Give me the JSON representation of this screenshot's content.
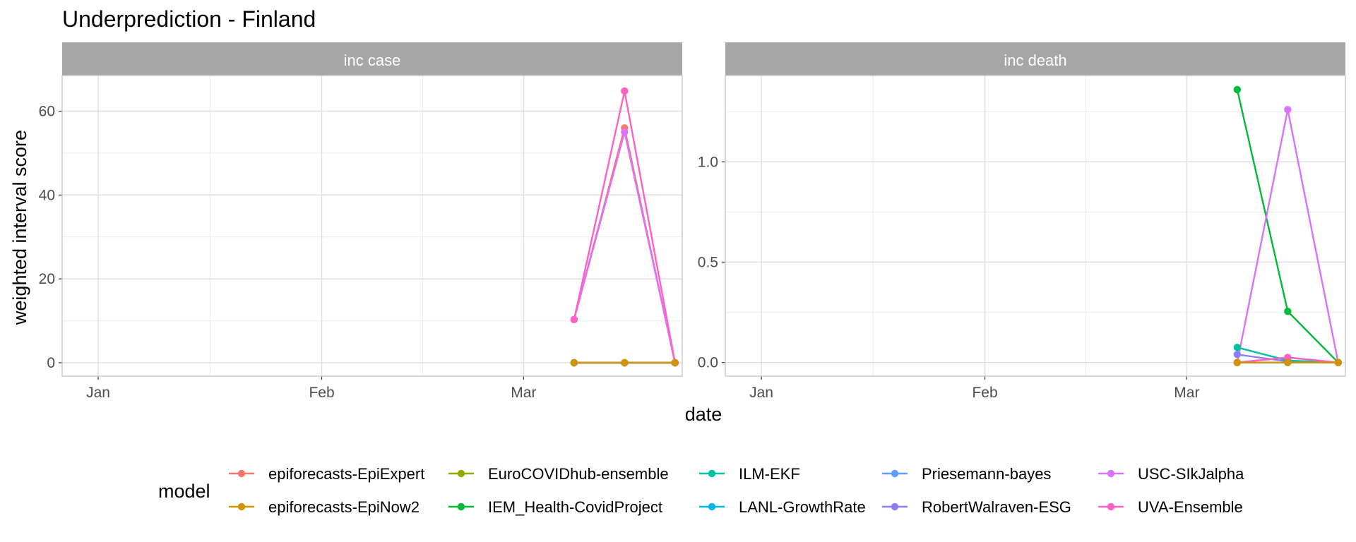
{
  "chart_data": {
    "type": "line",
    "title": "Underprediction - Finland",
    "xlabel": "date",
    "ylabel": "weighted interval score",
    "legend_title": "model",
    "legend_position": "bottom",
    "grid": true,
    "x_ticks": [
      "Jan",
      "Feb",
      "Mar"
    ],
    "x_tick_dates": [
      "2021-01-01",
      "2021-02-01",
      "2021-03-01"
    ],
    "xlim": [
      "2020-12-27",
      "2021-03-23"
    ],
    "models": [
      {
        "name": "epiforecasts-EpiExpert",
        "color": "#F8766D"
      },
      {
        "name": "epiforecasts-EpiNow2",
        "color": "#D39200"
      },
      {
        "name": "EuroCOVIDhub-ensemble",
        "color": "#93AA00"
      },
      {
        "name": "IEM_Health-CovidProject",
        "color": "#00BA38"
      },
      {
        "name": "ILM-EKF",
        "color": "#00C19F"
      },
      {
        "name": "LANL-GrowthRate",
        "color": "#00B9E3"
      },
      {
        "name": "Priesemann-bayes",
        "color": "#619CFF"
      },
      {
        "name": "RobertWalraven-ESG",
        "color": "#8B7FFF"
      },
      {
        "name": "USC-SIkJalpha",
        "color": "#DB72FB"
      },
      {
        "name": "UVA-Ensemble",
        "color": "#FF61C3"
      }
    ],
    "facets": [
      {
        "label": "inc case",
        "ylim": [
          -3.2,
          68.5
        ],
        "y_ticks": [
          0,
          20,
          40,
          60
        ],
        "y_tick_labels": [
          "0",
          "20",
          "40",
          "60"
        ],
        "minor_y_ticks": [
          10,
          30,
          50
        ],
        "series": [
          {
            "name": "epiforecasts-EpiExpert",
            "x": [
              "2021-03-08",
              "2021-03-15",
              "2021-03-22"
            ],
            "y": [
              10.3,
              56,
              0
            ]
          },
          {
            "name": "epiforecasts-EpiNow2",
            "x": [
              "2021-03-08",
              "2021-03-15",
              "2021-03-22"
            ],
            "y": [
              0,
              0,
              0
            ]
          },
          {
            "name": "EuroCOVIDhub-ensemble",
            "x": [
              "2021-03-08",
              "2021-03-15",
              "2021-03-22"
            ],
            "y": [
              0,
              0,
              0
            ]
          },
          {
            "name": "IEM_Health-CovidProject",
            "x": [
              "2021-03-08",
              "2021-03-15",
              "2021-03-22"
            ],
            "y": [
              0,
              0,
              0
            ]
          },
          {
            "name": "ILM-EKF",
            "x": [
              "2021-03-08",
              "2021-03-15",
              "2021-03-22"
            ],
            "y": [
              0,
              0,
              0
            ]
          },
          {
            "name": "LANL-GrowthRate",
            "x": [
              "2021-03-08",
              "2021-03-15",
              "2021-03-22"
            ],
            "y": [
              0,
              0,
              0
            ]
          },
          {
            "name": "Priesemann-bayes",
            "x": [
              "2021-03-08",
              "2021-03-15",
              "2021-03-22"
            ],
            "y": [
              0,
              0,
              0
            ]
          },
          {
            "name": "RobertWalraven-ESG",
            "x": [
              "2021-03-08",
              "2021-03-15",
              "2021-03-22"
            ],
            "y": [
              0,
              0,
              0
            ]
          },
          {
            "name": "USC-SIkJalpha",
            "x": [
              "2021-03-08",
              "2021-03-15",
              "2021-03-22"
            ],
            "y": [
              10.3,
              55,
              0
            ]
          },
          {
            "name": "UVA-Ensemble",
            "x": [
              "2021-03-08",
              "2021-03-15",
              "2021-03-22"
            ],
            "y": [
              10.3,
              64.8,
              0
            ]
          },
          {
            "name": "epiforecasts-EpiNow2",
            "x": [
              "2021-03-08",
              "2021-03-15",
              "2021-03-22"
            ],
            "y": [
              0,
              0,
              0
            ]
          }
        ]
      },
      {
        "label": "inc death",
        "ylim": [
          -0.068,
          1.43
        ],
        "y_ticks": [
          0,
          0.5,
          1.0
        ],
        "y_tick_labels": [
          "0.0",
          "0.5",
          "1.0"
        ],
        "minor_y_ticks": [
          0.25,
          0.75,
          1.25
        ],
        "series": [
          {
            "name": "epiforecasts-EpiExpert",
            "x": [
              "2021-03-08",
              "2021-03-15",
              "2021-03-22"
            ],
            "y": [
              0,
              0.025,
              0
            ]
          },
          {
            "name": "EuroCOVIDhub-ensemble",
            "x": [
              "2021-03-08",
              "2021-03-15",
              "2021-03-22"
            ],
            "y": [
              0,
              0,
              0
            ]
          },
          {
            "name": "LANL-GrowthRate",
            "x": [
              "2021-03-08",
              "2021-03-15",
              "2021-03-22"
            ],
            "y": [
              0,
              0,
              0
            ]
          },
          {
            "name": "Priesemann-bayes",
            "x": [
              "2021-03-08",
              "2021-03-15",
              "2021-03-22"
            ],
            "y": [
              0,
              0,
              0
            ]
          },
          {
            "name": "RobertWalraven-ESG",
            "x": [
              "2021-03-08",
              "2021-03-15",
              "2021-03-22"
            ],
            "y": [
              0.04,
              0.005,
              0
            ]
          },
          {
            "name": "ILM-EKF",
            "x": [
              "2021-03-08",
              "2021-03-15",
              "2021-03-22"
            ],
            "y": [
              0.075,
              0.01,
              0
            ]
          },
          {
            "name": "IEM_Health-CovidProject",
            "x": [
              "2021-03-08",
              "2021-03-15",
              "2021-03-22"
            ],
            "y": [
              1.36,
              0.255,
              0
            ]
          },
          {
            "name": "USC-SIkJalpha",
            "x": [
              "2021-03-08",
              "2021-03-15",
              "2021-03-22"
            ],
            "y": [
              0,
              1.26,
              0
            ]
          },
          {
            "name": "UVA-Ensemble",
            "x": [
              "2021-03-08",
              "2021-03-15",
              "2021-03-22"
            ],
            "y": [
              0,
              0.025,
              0
            ]
          },
          {
            "name": "epiforecasts-EpiNow2",
            "x": [
              "2021-03-08",
              "2021-03-15",
              "2021-03-22"
            ],
            "y": [
              0,
              0,
              0
            ]
          }
        ]
      }
    ]
  }
}
